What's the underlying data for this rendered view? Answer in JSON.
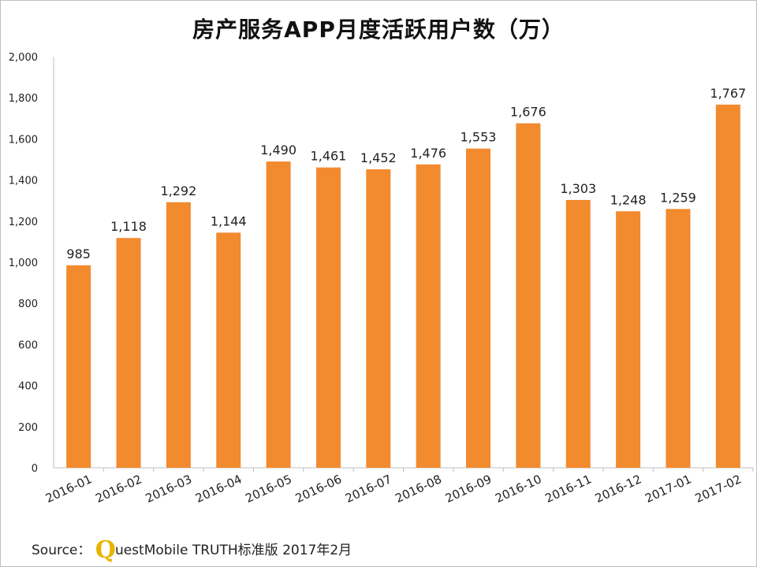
{
  "chart_data": {
    "type": "bar",
    "title": "房产服务APP月度活跃用户数（万）",
    "categories": [
      "2016-01",
      "2016-02",
      "2016-03",
      "2016-04",
      "2016-05",
      "2016-06",
      "2016-07",
      "2016-08",
      "2016-09",
      "2016-10",
      "2016-11",
      "2016-12",
      "2017-01",
      "2017-02"
    ],
    "values": [
      985,
      1118,
      1292,
      1144,
      1490,
      1461,
      1452,
      1476,
      1553,
      1676,
      1303,
      1248,
      1259,
      1767
    ],
    "value_labels": [
      "985",
      "1,118",
      "1,292",
      "1,144",
      "1,490",
      "1,461",
      "1,452",
      "1,476",
      "1,553",
      "1,676",
      "1,303",
      "1,248",
      "1,259",
      "1,767"
    ],
    "ylim": [
      0,
      2000
    ],
    "yticks": [
      0,
      200,
      400,
      600,
      800,
      1000,
      1200,
      1400,
      1600,
      1800,
      2000
    ],
    "ytick_labels": [
      "0",
      "200",
      "400",
      "600",
      "800",
      "1,000",
      "1,200",
      "1,400",
      "1,600",
      "1,800",
      "2,000"
    ],
    "xlabel": "",
    "ylabel": "",
    "grid": false,
    "bar_color": "#f28a2e"
  },
  "source": {
    "prefix": "Source：",
    "logo_letter": "Q",
    "logo_color": "#e8b400",
    "text": "uestMobile TRUTH标准版 2017年2月"
  }
}
